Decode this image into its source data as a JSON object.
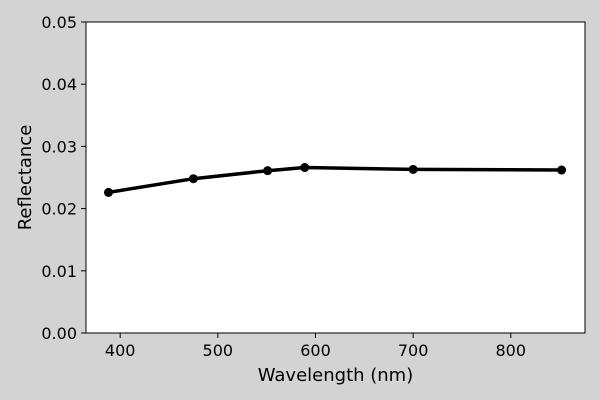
{
  "chart_data": {
    "type": "line",
    "title": "",
    "xlabel": "Wavelength (nm)",
    "ylabel": "Reflectance",
    "xlim": [
      365,
      876
    ],
    "ylim": [
      0.0,
      0.05
    ],
    "xticks": [
      400,
      500,
      600,
      700,
      800
    ],
    "xtick_labels": [
      "400",
      "500",
      "600",
      "700",
      "800"
    ],
    "yticks": [
      0.0,
      0.01,
      0.02,
      0.03,
      0.04,
      0.05
    ],
    "ytick_labels": [
      "0.00",
      "0.01",
      "0.02",
      "0.03",
      "0.04",
      "0.05"
    ],
    "grid": false,
    "legend": "none",
    "series": [
      {
        "color": "#000000",
        "x": [
          388,
          475,
          551,
          589,
          700,
          852
        ],
        "y": [
          0.0226,
          0.0248,
          0.0261,
          0.0266,
          0.0263,
          0.0262
        ]
      }
    ]
  },
  "colors": {
    "background": "#d3d3d3",
    "plot_area": "#ffffff",
    "line": "#000000"
  }
}
